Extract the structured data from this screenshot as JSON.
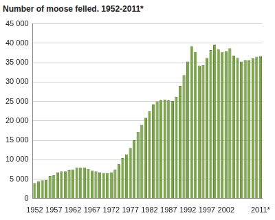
{
  "chart_data": {
    "type": "bar",
    "title": "Number of moose felled. 1952-2011*",
    "categories": [
      "1952",
      null,
      null,
      null,
      null,
      "1957",
      null,
      null,
      null,
      null,
      "1962",
      null,
      null,
      null,
      null,
      "1967",
      null,
      null,
      null,
      null,
      "1972",
      null,
      null,
      null,
      null,
      "1977",
      null,
      null,
      null,
      null,
      "1982",
      null,
      null,
      null,
      null,
      "1987",
      null,
      null,
      null,
      null,
      "1992",
      null,
      null,
      null,
      null,
      "1997",
      null,
      null,
      null,
      null,
      "2002",
      null,
      null,
      null,
      null,
      null,
      null,
      null,
      null,
      "2011*"
    ],
    "values": [
      4000,
      4500,
      4700,
      4800,
      5800,
      6000,
      6800,
      7000,
      7000,
      7400,
      7500,
      8000,
      8000,
      8000,
      7600,
      7200,
      7000,
      6800,
      6600,
      6600,
      6700,
      7500,
      8800,
      10400,
      11400,
      13000,
      15000,
      17200,
      19000,
      20800,
      22500,
      24200,
      25000,
      25300,
      25500,
      25300,
      25100,
      26200,
      29000,
      31800,
      35300,
      39200,
      37700,
      34200,
      34300,
      36200,
      38200,
      39600,
      38400,
      37700,
      38000,
      38700,
      36800,
      36200,
      35300,
      35700,
      35700,
      36100,
      36500,
      36700
    ],
    "color": "#7ba447",
    "ylim": [
      0,
      45000
    ],
    "yticks": [
      0,
      {
        "value": 5000,
        "label": "5 000"
      },
      {
        "value": 10000,
        "label": "10 000"
      },
      {
        "value": 15000,
        "label": "15 000"
      },
      {
        "value": 20000,
        "label": "20 000"
      },
      {
        "value": 25000,
        "label": "25 000"
      },
      {
        "value": 30000,
        "label": "30 000"
      },
      {
        "value": 35000,
        "label": "35 000"
      },
      {
        "value": 40000,
        "label": "40 000"
      },
      {
        "value": 45000,
        "label": "45 000"
      }
    ],
    "grid": true
  }
}
